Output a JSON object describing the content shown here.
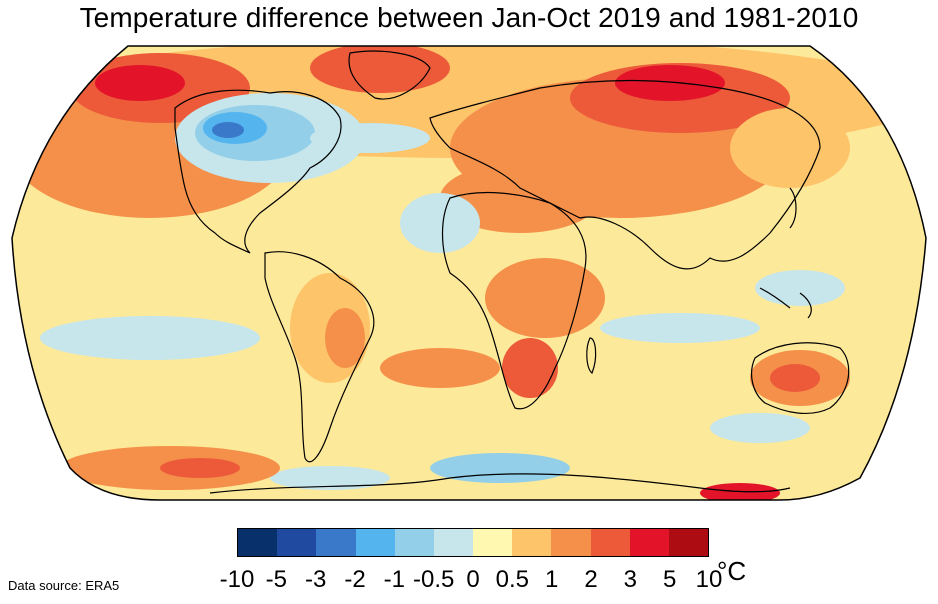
{
  "title": "Temperature difference between Jan-Oct 2019 and 1981-2010",
  "source": "Data source: ERA5",
  "legend": {
    "unit": "°C",
    "tick_labels": [
      "-10",
      "-5",
      "-3",
      "-2",
      "-1",
      "-0.5",
      "0",
      "0.5",
      "1",
      "2",
      "3",
      "5",
      "10"
    ],
    "colors": [
      "#08306b",
      "#1f4aa0",
      "#3a78c9",
      "#54b5ee",
      "#93cfe8",
      "#c6e6ec",
      "#fff8b0",
      "#fdc46a",
      "#f5904a",
      "#ec5a3a",
      "#e3142a",
      "#ad0d12"
    ]
  },
  "map": {
    "projection": "Robinson",
    "colors": {
      "ocean_base": "#fde99a",
      "warm": "#fdc46a",
      "warmer": "#f5904a",
      "hot": "#ec5a3a",
      "very_hot": "#e3142a",
      "cool": "#c6e6ec",
      "cooler": "#93cfe8",
      "cold": "#54b5ee",
      "colder": "#3a78c9",
      "coast": "#000000"
    }
  }
}
